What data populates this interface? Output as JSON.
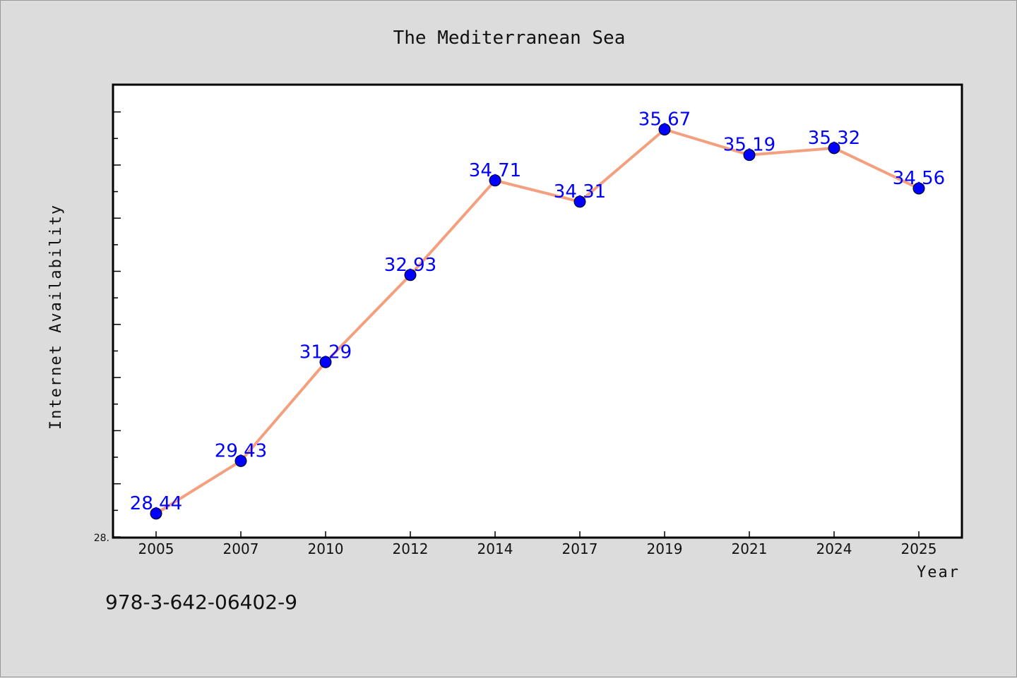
{
  "chart_data": {
    "type": "line",
    "title": "The Mediterranean Sea",
    "xlabel": "Year",
    "ylabel": "Internet Availability",
    "categories": [
      "2005",
      "2007",
      "2010",
      "2012",
      "2014",
      "2017",
      "2019",
      "2021",
      "2024",
      "2025"
    ],
    "series": [
      {
        "values": [
          28.44,
          29.43,
          31.29,
          32.93,
          34.71,
          34.31,
          35.67,
          35.19,
          35.32,
          34.56
        ]
      }
    ],
    "data_labels": [
      "28.44",
      "29.43",
      "31.29",
      "32.93",
      "34.71",
      "34.31",
      "35.67",
      "35.19",
      "35.32",
      "34.56"
    ],
    "ytick_labels": [
      "28."
    ],
    "ylim": [
      28.0,
      36.5
    ],
    "grid": false,
    "legend": "none",
    "colors": {
      "line": "#f4a07f",
      "marker": "#0000ff",
      "data_label": "#0000ff",
      "background": "#dcdcdc",
      "plot_area": "#ffffff"
    }
  },
  "footer": {
    "isbn": "978-3-642-06402-9"
  }
}
